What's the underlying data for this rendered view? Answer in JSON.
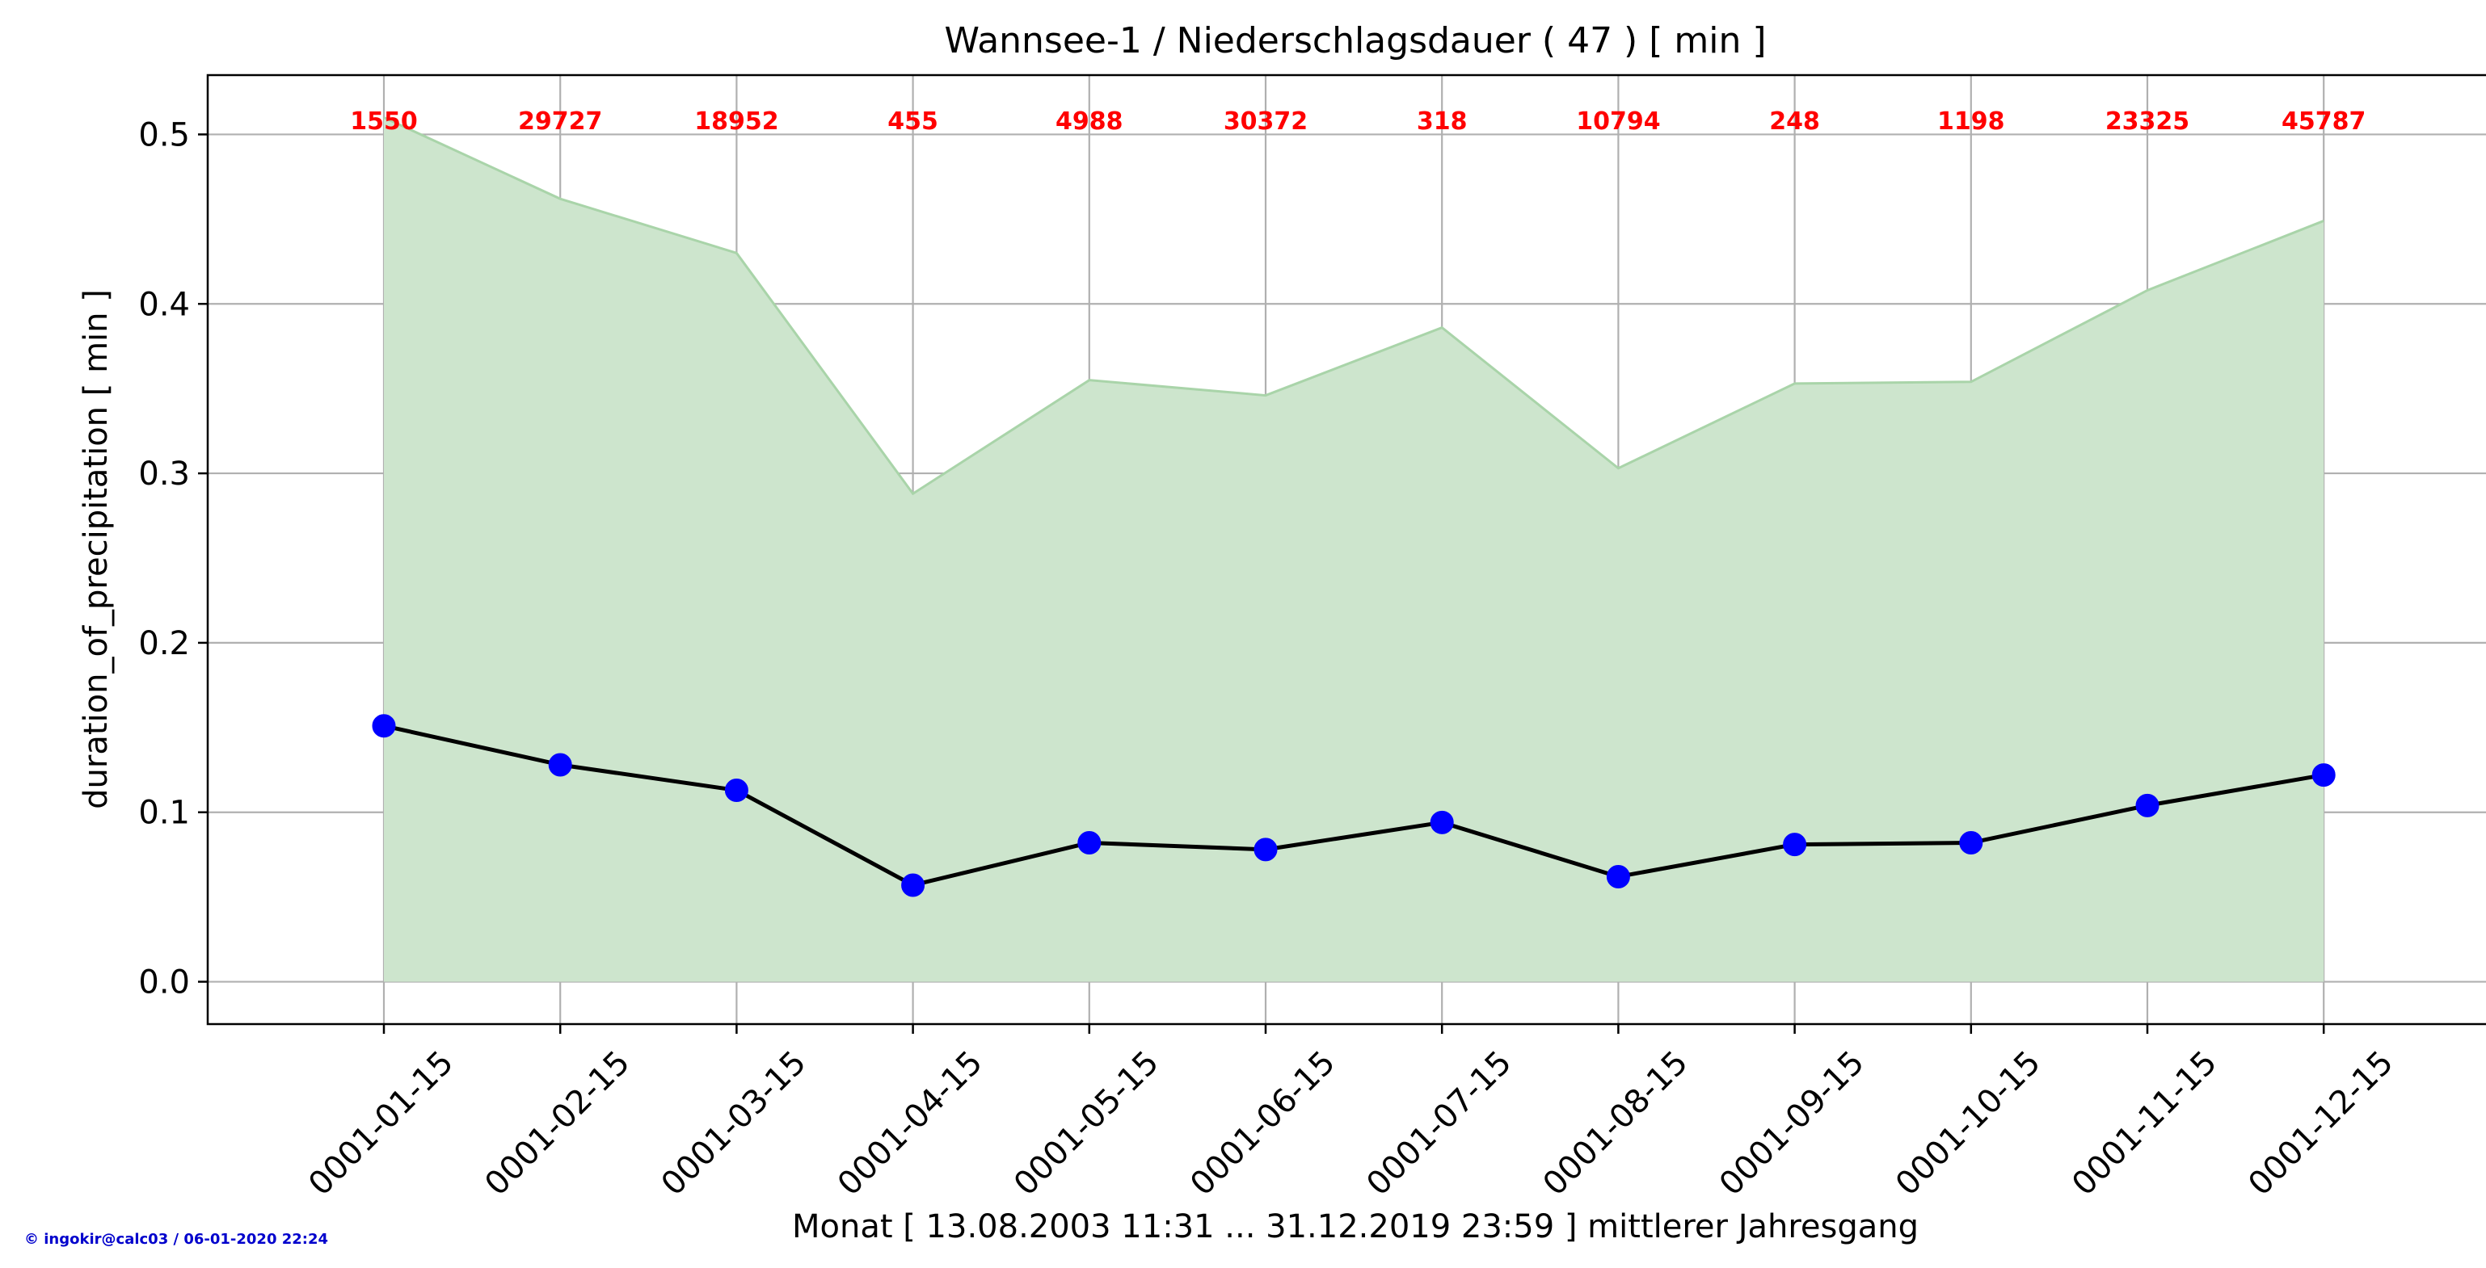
{
  "chart_data": {
    "type": "line",
    "title": "Wannsee-1 / Niederschlagsdauer ( 47 ) [ min ]",
    "xlabel": "Monat [ 13.08.2003 11:31 ... 31.12.2019 23:59 ] mittlerer Jahresgang",
    "ylabel": "duration_of_precipitation [ min ]",
    "categories": [
      "0001-01-15",
      "0001-02-15",
      "0001-03-15",
      "0001-04-15",
      "0001-05-15",
      "0001-06-15",
      "0001-07-15",
      "0001-08-15",
      "0001-09-15",
      "0001-10-15",
      "0001-11-15",
      "0001-12-15"
    ],
    "series": [
      {
        "values": [
          0.151,
          0.128,
          0.113,
          0.057,
          0.082,
          0.078,
          0.094,
          0.062,
          0.081,
          0.082,
          0.104,
          0.122
        ],
        "color": "#000000",
        "marker_color": "#0000ff"
      }
    ],
    "band_upper": [
      0.51,
      0.462,
      0.43,
      0.288,
      0.355,
      0.346,
      0.386,
      0.303,
      0.353,
      0.354,
      0.408,
      0.449
    ],
    "band_lower": [
      0,
      0,
      0,
      0,
      0,
      0,
      0,
      0,
      0,
      0,
      0,
      0
    ],
    "band_color": "#cde5cd",
    "band_edge_color": "#a9d4a9",
    "counts": [
      "1550",
      "29727",
      "18952",
      "455",
      "4988",
      "30372",
      "318",
      "10794",
      "248",
      "1198",
      "23325",
      "45787"
    ],
    "count_color": "#ff0000",
    "yticks": [
      "0.0",
      "0.1",
      "0.2",
      "0.3",
      "0.4",
      "0.5"
    ],
    "ylim": [
      -0.025,
      0.535
    ],
    "grid": true
  },
  "footer": {
    "credit": "© ingokir@calc03 / 06-01-2020 22:24"
  }
}
